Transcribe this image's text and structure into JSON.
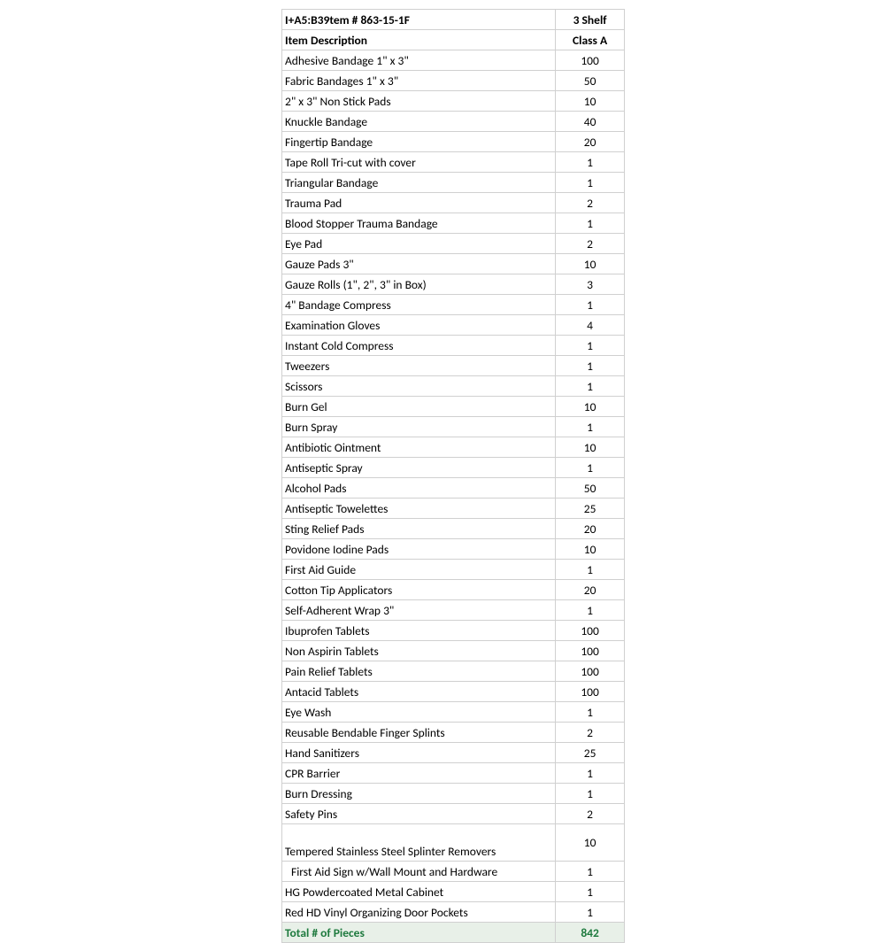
{
  "table": {
    "header1": {
      "desc": "I+A5:B39tem # 863-15-1F",
      "qty": "3 Shelf"
    },
    "header2": {
      "desc": "Item Description",
      "qty": "Class A"
    },
    "rows": [
      {
        "desc": "Adhesive Bandage 1\" x 3\"",
        "qty": "100"
      },
      {
        "desc": "Fabric Bandages 1\" x 3\"",
        "qty": "50"
      },
      {
        "desc": "2\" x 3\" Non Stick Pads",
        "qty": "10"
      },
      {
        "desc": "Knuckle Bandage",
        "qty": "40"
      },
      {
        "desc": "Fingertip Bandage",
        "qty": "20"
      },
      {
        "desc": "Tape Roll Tri-cut with cover",
        "qty": "1"
      },
      {
        "desc": "Triangular Bandage",
        "qty": "1"
      },
      {
        "desc": "Trauma Pad",
        "qty": "2"
      },
      {
        "desc": "Blood Stopper Trauma Bandage",
        "qty": "1"
      },
      {
        "desc": "Eye Pad",
        "qty": "2"
      },
      {
        "desc": "Gauze Pads 3\"",
        "qty": "10"
      },
      {
        "desc": "Gauze Rolls (1\", 2\", 3\" in Box)",
        "qty": "3"
      },
      {
        "desc": "4\" Bandage Compress",
        "qty": "1"
      },
      {
        "desc": "Examination Gloves",
        "qty": "4"
      },
      {
        "desc": "Instant Cold Compress",
        "qty": "1"
      },
      {
        "desc": "Tweezers",
        "qty": "1"
      },
      {
        "desc": "Scissors",
        "qty": "1"
      },
      {
        "desc": "Burn Gel",
        "qty": "10"
      },
      {
        "desc": "Burn Spray",
        "qty": "1"
      },
      {
        "desc": "Antibiotic Ointment",
        "qty": "10"
      },
      {
        "desc": "Antiseptic Spray",
        "qty": "1"
      },
      {
        "desc": "Alcohol Pads",
        "qty": "50"
      },
      {
        "desc": "Antiseptic Towelettes",
        "qty": "25"
      },
      {
        "desc": "Sting Relief Pads",
        "qty": "20"
      },
      {
        "desc": "Povidone Iodine Pads",
        "qty": "10"
      },
      {
        "desc": "First Aid Guide",
        "qty": "1"
      },
      {
        "desc": "Cotton Tip Applicators",
        "qty": "20"
      },
      {
        "desc": "Self-Adherent Wrap 3\"",
        "qty": "1"
      },
      {
        "desc": "Ibuprofen Tablets",
        "qty": "100"
      },
      {
        "desc": "Non Aspirin Tablets",
        "qty": "100"
      },
      {
        "desc": "Pain Relief Tablets",
        "qty": "100"
      },
      {
        "desc": "Antacid Tablets",
        "qty": "100"
      },
      {
        "desc": "Eye Wash",
        "qty": "1"
      },
      {
        "desc": "Reusable Bendable Finger Splints",
        "qty": "2"
      },
      {
        "desc": "Hand Sanitizers",
        "qty": "25"
      },
      {
        "desc": "CPR Barrier",
        "qty": "1"
      },
      {
        "desc": "Burn Dressing",
        "qty": "1"
      },
      {
        "desc": "Safety Pins",
        "qty": "2"
      }
    ],
    "tallRow": {
      "desc": "Tempered Stainless Steel Splinter Removers",
      "qty": "10"
    },
    "rows2": [
      {
        "desc": "  First Aid Sign w/Wall Mount and Hardware",
        "qty": "1",
        "indent": true
      },
      {
        "desc": "HG Powdercoated Metal Cabinet",
        "qty": "1"
      },
      {
        "desc": "Red HD Vinyl Organizing Door Pockets",
        "qty": "1"
      }
    ],
    "total": {
      "desc": "Total # of Pieces",
      "qty": "842"
    }
  },
  "colors": {
    "border": "#d0d0d0",
    "totalText": "#1e7a3e",
    "totalBg": "#e8f0e8"
  }
}
